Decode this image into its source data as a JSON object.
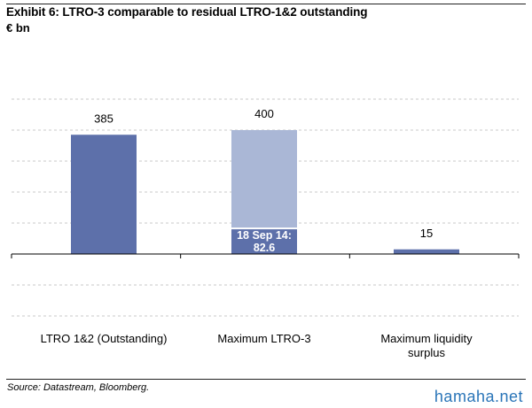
{
  "header": {
    "title": "Exhibit 6: LTRO-3 comparable to residual LTRO-1&2 outstanding",
    "unit": "€ bn"
  },
  "footer": {
    "source": "Source: Datastream, Bloomberg.",
    "watermark": "hamaha.net"
  },
  "colors": {
    "dark_bar": "#5d70aa",
    "light_bar": "#aab7d6",
    "grid": "#c8c8c8"
  },
  "chart_data": {
    "type": "bar",
    "title": "Exhibit 6: LTRO-3 comparable to residual LTRO-1&2 outstanding",
    "ylabel": "€ bn",
    "categories": [
      "LTRO 1&2 (Outstanding)",
      "Maximum LTRO-3",
      "Maximum liquidity surplus"
    ],
    "values": [
      385,
      400,
      15
    ],
    "value_labels": [
      "385",
      "400",
      "15"
    ],
    "stacked_segment": {
      "category_index": 1,
      "value": 82.6,
      "label": "18 Sep 14:\n82.6"
    },
    "ylim": [
      -200,
      500
    ],
    "grid": true
  }
}
